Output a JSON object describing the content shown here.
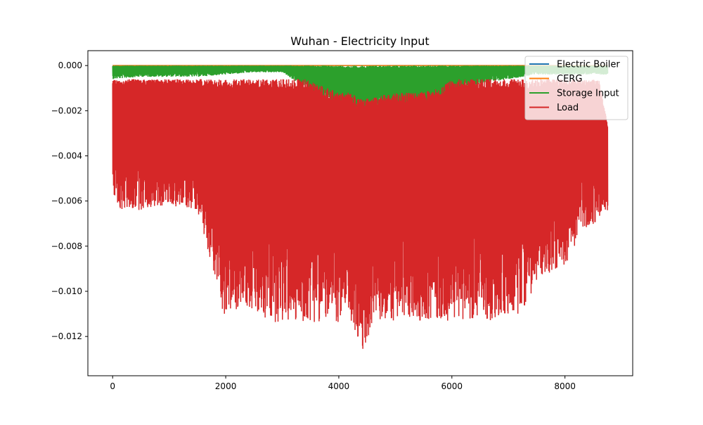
{
  "chart_data": {
    "type": "line",
    "title": "Wuhan - Electricity Input",
    "xlabel": "",
    "ylabel": "",
    "xlim": [
      -438,
      9198
    ],
    "ylim": [
      -0.01374,
      0.00066
    ],
    "x_ticks": [
      0,
      2000,
      4000,
      6000,
      8000
    ],
    "y_ticks": [
      0.0,
      -0.002,
      -0.004,
      -0.006,
      -0.008,
      -0.01,
      -0.012
    ],
    "y_tick_labels": [
      "0.000",
      "−0.002",
      "−0.004",
      "−0.006",
      "−0.008",
      "−0.010",
      "−0.012"
    ],
    "grid": false,
    "legend_position": "top-right",
    "series": [
      {
        "name": "Electric Boiler",
        "color": "#1f77b4",
        "x": [
          0,
          8759
        ],
        "y": [
          0.0,
          0.0
        ]
      },
      {
        "name": "CERG",
        "color": "#ff7f0e",
        "x": [
          0,
          8759
        ],
        "y": [
          0.0,
          0.0
        ]
      },
      {
        "name": "Storage Input",
        "color": "#2ca02c",
        "x": [
          0,
          8759
        ],
        "y": [
          0.0,
          0.0
        ],
        "envelope": {
          "x": [
            0,
            500,
            1000,
            1500,
            2000,
            2500,
            3000,
            3300,
            3600,
            3800,
            4000,
            4200,
            4400,
            4600,
            4800,
            5000,
            5200,
            5500,
            5800,
            6200,
            6500,
            7000,
            7500,
            8000,
            8500,
            8759
          ],
          "min": [
            -0.0006,
            -0.0005,
            -0.0005,
            -0.0005,
            -0.0004,
            -0.0003,
            -0.0003,
            -0.0008,
            -0.0012,
            -0.0016,
            -0.002,
            -0.0024,
            -0.0028,
            -0.0022,
            -0.002,
            -0.0018,
            -0.0019,
            -0.0021,
            -0.0016,
            -0.001,
            -0.0008,
            -0.0006,
            -0.0004,
            -0.0004,
            -0.0004,
            -0.0004
          ],
          "max": [
            0.0,
            0.0,
            0.0,
            0.0,
            0.0,
            0.0,
            0.0,
            0.0,
            0.0,
            0.0,
            0.0,
            0.0,
            0.0,
            0.0,
            0.0,
            0.0,
            0.0,
            0.0,
            0.0,
            0.0,
            0.0,
            0.0,
            0.0,
            0.0,
            0.0,
            0.0
          ]
        }
      },
      {
        "name": "Load",
        "color": "#d62728",
        "x": [
          0,
          8759
        ],
        "y": [
          -0.0006,
          -0.0006
        ],
        "envelope": {
          "x": [
            0,
            50,
            500,
            1000,
            1500,
            1700,
            2000,
            2300,
            2600,
            3000,
            3400,
            3800,
            4000,
            4200,
            4420,
            4600,
            4800,
            5000,
            5400,
            5800,
            6000,
            6300,
            6500,
            6800,
            7200,
            7600,
            8000,
            8300,
            8600,
            8759
          ],
          "min": [
            -0.0053,
            -0.0064,
            -0.0064,
            -0.0062,
            -0.0064,
            -0.0083,
            -0.0114,
            -0.0105,
            -0.0113,
            -0.0114,
            -0.0114,
            -0.0113,
            -0.0114,
            -0.0113,
            -0.013,
            -0.0113,
            -0.0114,
            -0.0113,
            -0.0113,
            -0.0113,
            -0.0113,
            -0.0112,
            -0.0113,
            -0.0113,
            -0.011,
            -0.0093,
            -0.0089,
            -0.0073,
            -0.0069,
            -0.0064
          ],
          "max": [
            -0.0006,
            -0.0006,
            -0.0006,
            -0.0006,
            -0.0006,
            -0.0006,
            -0.0006,
            -0.0006,
            -0.0006,
            -0.0006,
            -0.0006,
            -0.001,
            -0.0012,
            -0.0012,
            -0.0015,
            -0.0014,
            -0.0013,
            -0.0012,
            -0.0012,
            -0.001,
            -0.0006,
            -0.0006,
            -0.0006,
            -0.0006,
            -0.0006,
            -0.0006,
            -0.0006,
            -0.0006,
            -0.0006,
            -0.0026
          ]
        }
      }
    ]
  }
}
